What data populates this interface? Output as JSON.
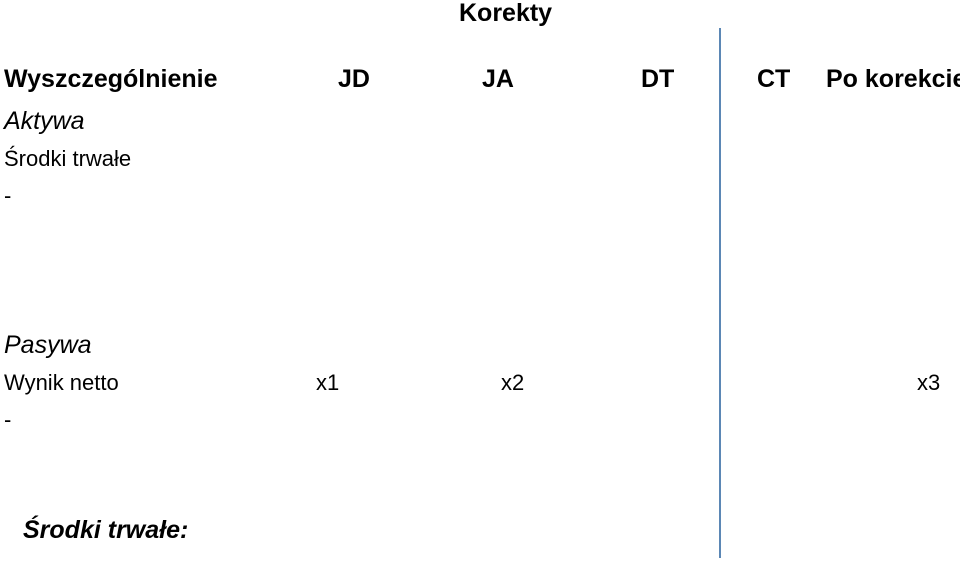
{
  "title": "Korekty",
  "header": {
    "col_desc": "Wyszczególnienie",
    "col_jd": "JD",
    "col_ja": "JA",
    "col_dt": "DT",
    "col_ct": "CT",
    "col_after": "Po korekcie"
  },
  "assets": {
    "label": "Aktywa",
    "row1": "Środki trwałe",
    "row2": "-"
  },
  "liabilities": {
    "label": "Pasywa",
    "row1": {
      "label": "Wynik netto",
      "jd": "x1",
      "ja": "x2",
      "after": "x3"
    },
    "row2": "-"
  },
  "footer": "Środki trwałe:",
  "colors": {
    "divider": "#5b87b5"
  }
}
